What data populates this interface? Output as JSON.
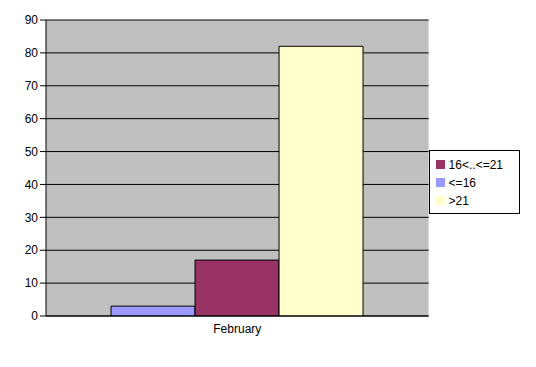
{
  "chart_data": {
    "type": "bar",
    "categories": [
      "February"
    ],
    "series": [
      {
        "name": "<=16",
        "color": "#9999ff",
        "values": [
          3
        ]
      },
      {
        "name": "16<..<=21",
        "color": "#993366",
        "values": [
          17
        ]
      },
      {
        "name": ">21",
        "color": "#ffffcc",
        "values": [
          82
        ]
      }
    ],
    "ylim": [
      0,
      90
    ],
    "yticks": [
      0,
      10,
      20,
      30,
      40,
      50,
      60,
      70,
      80,
      90
    ],
    "grid": true,
    "legend": "right"
  }
}
